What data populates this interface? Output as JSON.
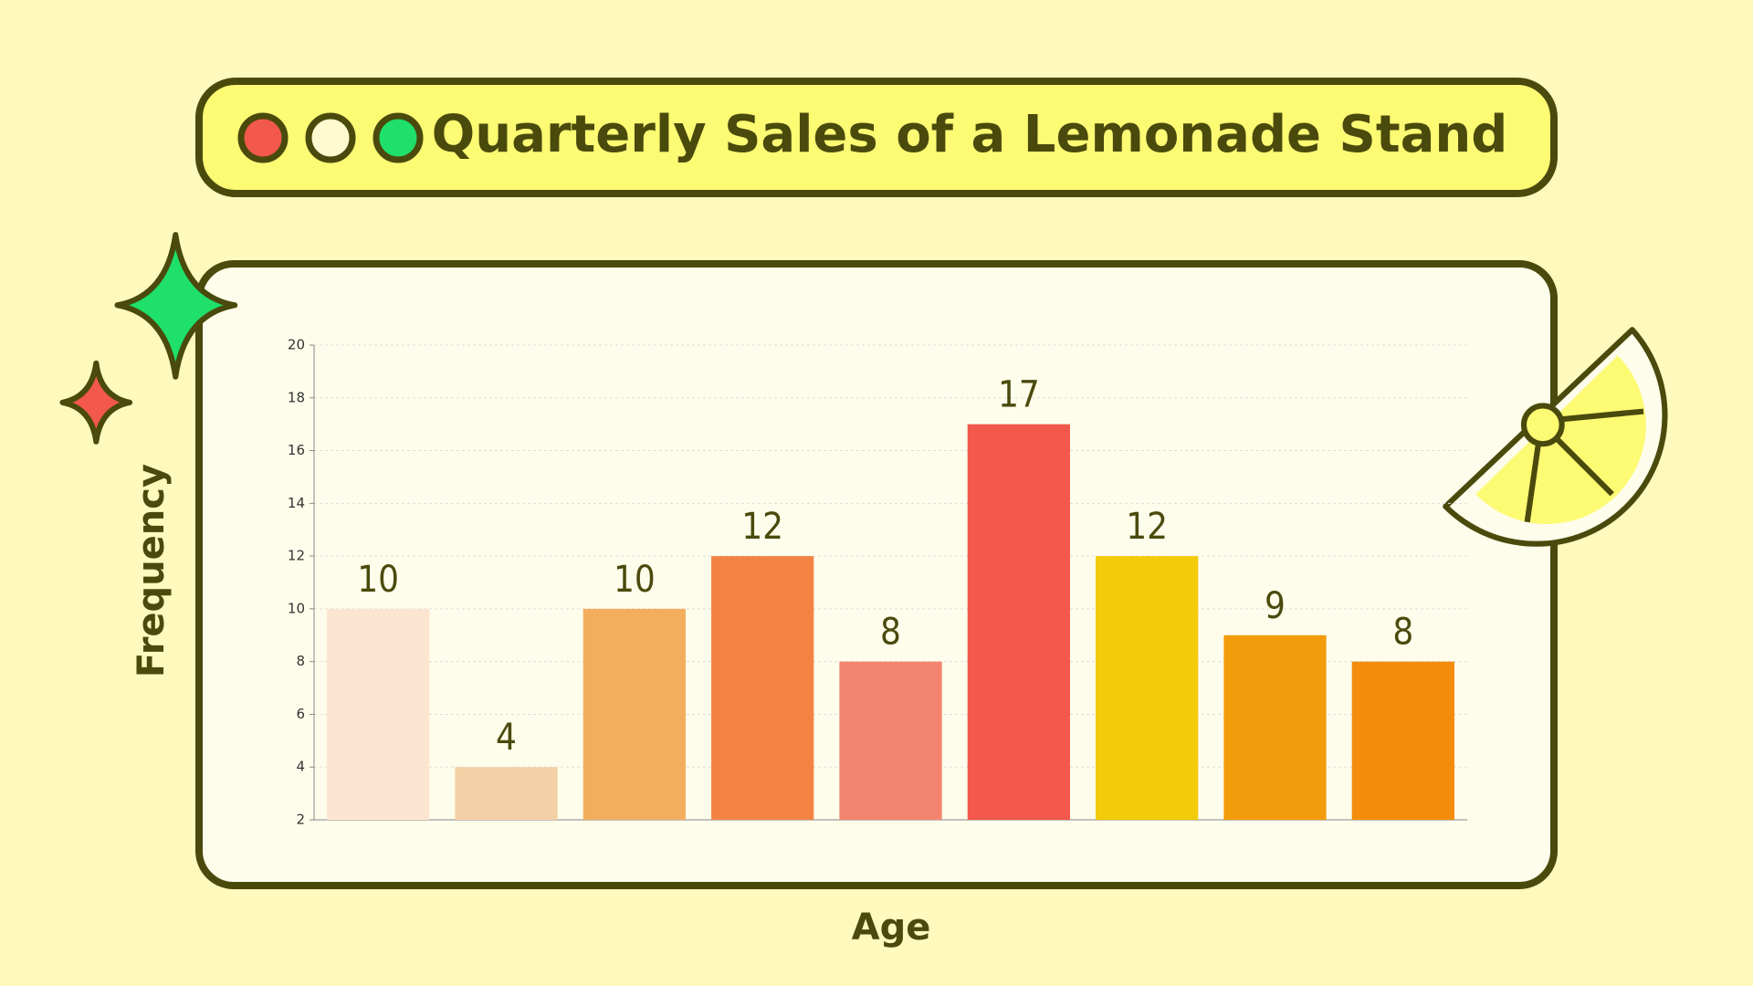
{
  "chart_data": {
    "type": "bar",
    "title": "Quarterly Sales of a Lemonade Stand",
    "x_label": "Age",
    "y_label": "Frequency",
    "categories": [
      null,
      null,
      null,
      null,
      null,
      null,
      null,
      null,
      null
    ],
    "values": [
      10,
      4,
      10,
      12,
      8,
      17,
      12,
      9,
      8
    ],
    "colors": [
      "#fce5d0",
      "#f4d0a6",
      "#f2ae5d",
      "#f38344",
      "#f38470",
      "#f2584b",
      "#f2cb0b",
      "#f29c0c",
      "#f28c0a"
    ],
    "ylim": [
      2,
      20
    ],
    "yticks": [
      2,
      4,
      6,
      8,
      10,
      12,
      14,
      16,
      18,
      20
    ],
    "grid": true
  }
}
